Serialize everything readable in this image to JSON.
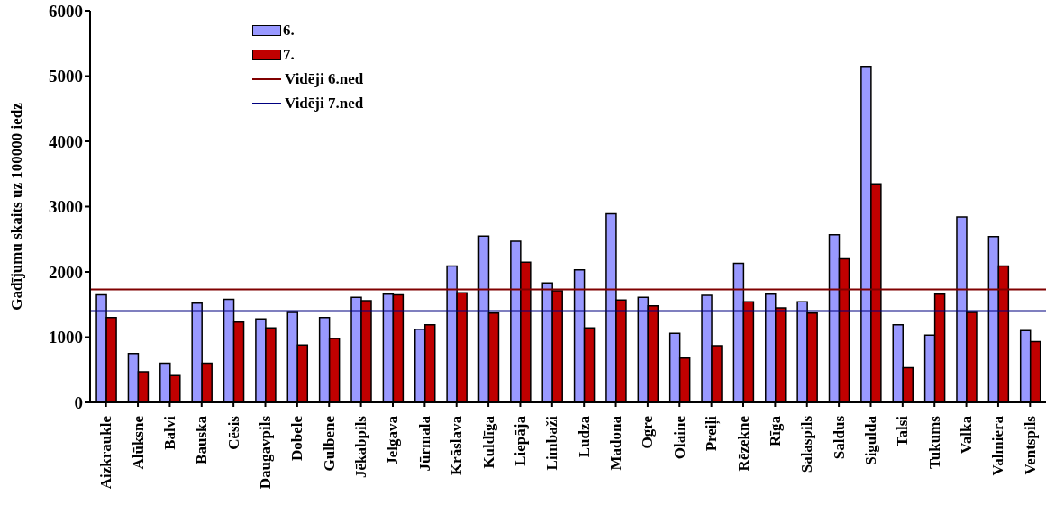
{
  "chart_data": {
    "type": "bar",
    "ylabel": "Gadījumu skaits uz 100000 iedz",
    "categories": [
      "Aizkraukle",
      "Alūksne",
      "Balvi",
      "Bauska",
      "Cēsis",
      "Daugavpils",
      "Dobele",
      "Gulbene",
      "Jēkabpils",
      "Jelgava",
      "Jūrmala",
      "Krāslava",
      "Kuldīga",
      "Liepāja",
      "Limbaži",
      "Ludza",
      "Madona",
      "Ogre",
      "Olaine",
      "Preiļi",
      "Rēzekne",
      "Rīga",
      "Salaspils",
      "Saldus",
      "Sigulda",
      "Talsi",
      "Tukums",
      "Valka",
      "Valmiera",
      "Ventspils"
    ],
    "series": [
      {
        "name": "6.",
        "color": "#9999ff",
        "values": [
          1650,
          750,
          600,
          1520,
          1580,
          1280,
          1380,
          1300,
          1610,
          1660,
          1120,
          2090,
          2550,
          2470,
          1830,
          2030,
          2890,
          1610,
          1060,
          1640,
          2130,
          1660,
          1540,
          2570,
          5150,
          1190,
          1030,
          2840,
          2540,
          1100
        ]
      },
      {
        "name": "7.",
        "color": "#c00000",
        "values": [
          1300,
          470,
          410,
          600,
          1230,
          1140,
          880,
          980,
          1560,
          1650,
          1190,
          1680,
          1370,
          2150,
          1710,
          1140,
          1570,
          1480,
          680,
          870,
          1540,
          1450,
          1370,
          2200,
          3350,
          530,
          1660,
          1380,
          2090,
          930
        ]
      }
    ],
    "ref_lines": [
      {
        "axis": "y",
        "value": 1730,
        "label": "Vidēji 6.ned",
        "color": "#800000"
      },
      {
        "axis": "y",
        "value": 1400,
        "label": "Vidēji 7.ned",
        "color": "#000080"
      }
    ],
    "ylim": [
      0,
      6000
    ],
    "yticks": [
      0,
      1000,
      2000,
      3000,
      4000,
      5000,
      6000
    ],
    "grid": false,
    "legend": "top"
  }
}
